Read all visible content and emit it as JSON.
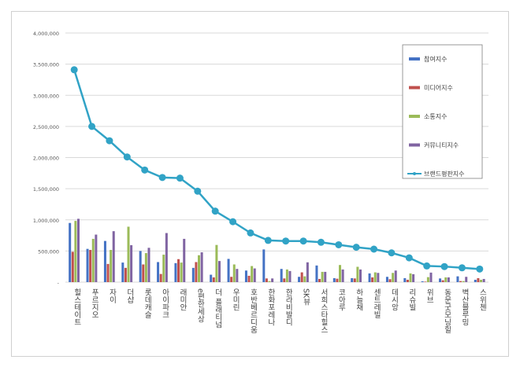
{
  "chart_data": {
    "type": "bar",
    "title": "",
    "xlabel": "",
    "ylabel": "",
    "ylim": [
      0,
      4000000
    ],
    "yticks": [
      0,
      500000,
      1000000,
      1500000,
      2000000,
      2500000,
      3000000,
      3500000,
      4000000
    ],
    "ytick_labels": [
      "-",
      "500,000",
      "1,000,000",
      "1,500,000",
      "2,000,000",
      "2,500,000",
      "3,000,000",
      "3,500,000",
      "4,000,000"
    ],
    "grid": true,
    "legend_position": "top-right",
    "categories": [
      "힐스테이트",
      "푸르지오",
      "자이",
      "더샵",
      "롯데캐슬",
      "아이파크",
      "래미안",
      "e편한세상",
      "더 플래티넘",
      "우미린",
      "호반베르디움",
      "한화포레나",
      "한라비발디",
      "SK뷰",
      "서희스타힐스",
      "코아루",
      "하늘채",
      "센트레빌",
      "데시앙",
      "리슈빌",
      "위브",
      "동문굿모닝힐",
      "벽산블루밍",
      "스위첸"
    ],
    "series": [
      {
        "name": "참여지수",
        "type": "bar",
        "color": "#4472c4",
        "values": [
          950000,
          534000,
          661000,
          314000,
          500000,
          322000,
          305000,
          229000,
          119000,
          373000,
          186000,
          525000,
          212000,
          85000,
          267000,
          64000,
          64000,
          140000,
          85000,
          64000,
          13000,
          59000,
          93000,
          38000
        ]
      },
      {
        "name": "미디어지수",
        "type": "bar",
        "color": "#c0504d",
        "values": [
          487000,
          517000,
          292000,
          229000,
          284000,
          131000,
          369000,
          322000,
          76000,
          85000,
          102000,
          59000,
          59000,
          157000,
          51000,
          55000,
          59000,
          76000,
          47000,
          38000,
          8000,
          30000,
          17000,
          64000
        ]
      },
      {
        "name": "소통지수",
        "type": "bar",
        "color": "#9bbb59",
        "values": [
          983000,
          695000,
          517000,
          890000,
          466000,
          441000,
          314000,
          432000,
          597000,
          284000,
          258000,
          17000,
          203000,
          93000,
          165000,
          275000,
          246000,
          157000,
          148000,
          140000,
          80000,
          76000,
          17000,
          38000
        ]
      },
      {
        "name": "커뮤니티지수",
        "type": "bar",
        "color": "#8064a2",
        "values": [
          1017000,
          763000,
          818000,
          593000,
          551000,
          788000,
          695000,
          479000,
          339000,
          212000,
          220000,
          59000,
          178000,
          318000,
          165000,
          203000,
          203000,
          148000,
          186000,
          127000,
          153000,
          76000,
          85000,
          51000
        ]
      },
      {
        "name": "브랜드평판지수",
        "type": "line",
        "color": "#31a3c6",
        "values": [
          3410000,
          2500000,
          2270000,
          2010000,
          1800000,
          1680000,
          1670000,
          1460000,
          1140000,
          970000,
          790000,
          670000,
          660000,
          660000,
          640000,
          600000,
          560000,
          530000,
          470000,
          390000,
          260000,
          250000,
          230000,
          210000
        ]
      }
    ]
  }
}
